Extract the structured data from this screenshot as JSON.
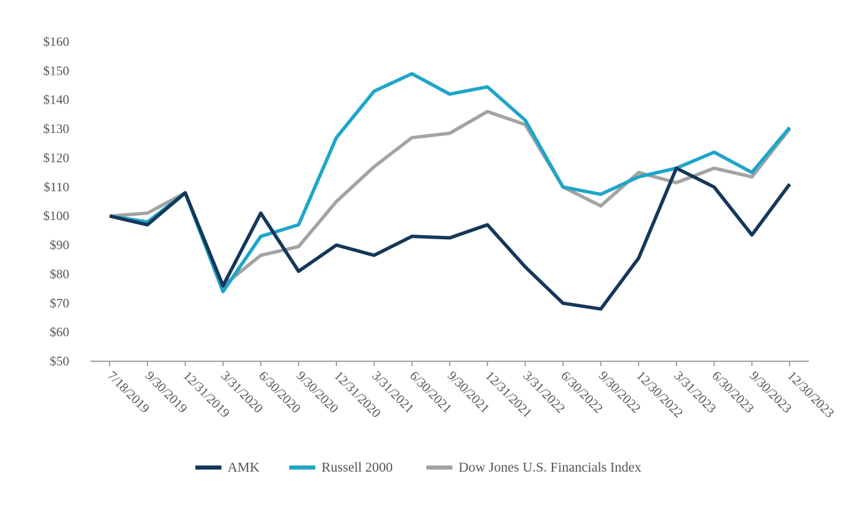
{
  "chart_data": {
    "type": "line",
    "title": "",
    "xlabel": "",
    "ylabel": "",
    "ylim": [
      50,
      160
    ],
    "y_ticks": [
      50,
      60,
      70,
      80,
      90,
      100,
      110,
      120,
      130,
      140,
      150,
      160
    ],
    "y_tick_labels": [
      "$50",
      "$60",
      "$70",
      "$80",
      "$90",
      "$100",
      "$110",
      "$120",
      "$130",
      "$140",
      "$150",
      "$160"
    ],
    "categories": [
      "7/18/2019",
      "9/30/2019",
      "12/31/2019",
      "3/31/2020",
      "6/30/2020",
      "9/30/2020",
      "12/31/2020",
      "3/31/2021",
      "6/30/2021",
      "9/30/2021",
      "12/31/2021",
      "3/31/2022",
      "6/30/2022",
      "9/30/2022",
      "12/30/2022",
      "3/31/2023",
      "6/30/2023",
      "9/30/2023",
      "12/30/2023"
    ],
    "grid": false,
    "legend_position": "bottom-center",
    "series": [
      {
        "name": "AMK",
        "color": "#14375a",
        "values": [
          100,
          97,
          108,
          76,
          101,
          81,
          90,
          86.5,
          93,
          92.5,
          97,
          82.5,
          70,
          68,
          85.5,
          116.5,
          110,
          93.5,
          111
        ]
      },
      {
        "name": "Russell 2000",
        "color": "#1ea5c8",
        "values": [
          100,
          98,
          108,
          74,
          93,
          97,
          127,
          143,
          149,
          142,
          144.5,
          133,
          110,
          107.5,
          113.5,
          116.5,
          122,
          115,
          130.5
        ]
      },
      {
        "name": "Dow Jones U.S. Financials Index",
        "color": "#a3a3a3",
        "values": [
          100,
          101,
          108,
          76,
          86.5,
          89.5,
          105,
          117,
          127,
          128.5,
          136,
          131.5,
          110,
          103.5,
          115,
          111.5,
          116.5,
          113.5,
          130
        ]
      }
    ]
  }
}
